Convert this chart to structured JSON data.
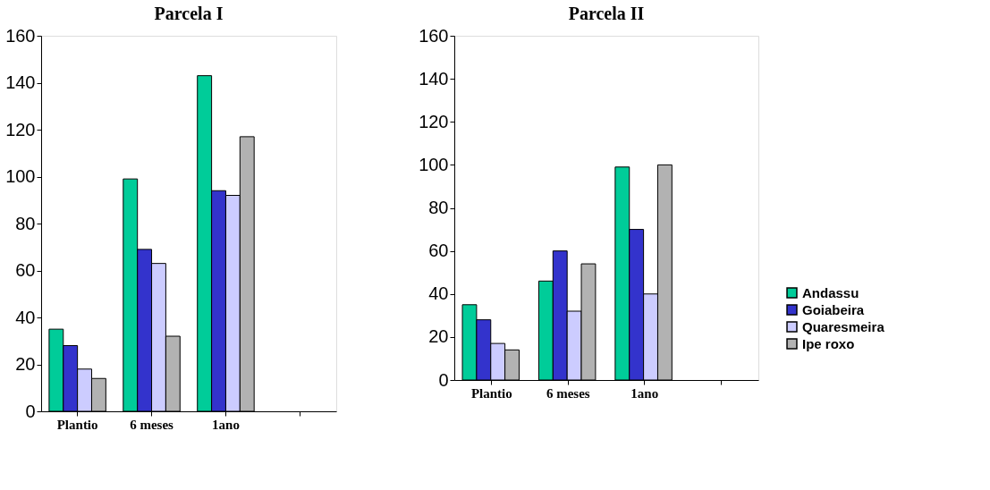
{
  "chart_data": [
    {
      "type": "bar",
      "title": "Parcela I",
      "categories": [
        "Plantio",
        "6 meses",
        "1ano",
        null
      ],
      "ylim": [
        0,
        160
      ],
      "yticks": [
        0,
        20,
        40,
        60,
        80,
        100,
        120,
        140,
        160
      ],
      "grid": false,
      "legend": false,
      "series": [
        {
          "color": "#00cc99",
          "values": [
            35,
            99,
            143,
            null
          ]
        },
        {
          "color": "#3333cc",
          "values": [
            28,
            69,
            94,
            null
          ]
        },
        {
          "color": "#ccccff",
          "values": [
            18,
            63,
            92,
            null
          ]
        },
        {
          "color": "#b2b2b2",
          "values": [
            14,
            32,
            117,
            null
          ]
        }
      ]
    },
    {
      "type": "bar",
      "title": "Parcela II",
      "categories": [
        "Plantio",
        "6 meses",
        "1ano",
        null
      ],
      "ylim": [
        0,
        160
      ],
      "yticks": [
        0,
        20,
        40,
        60,
        80,
        100,
        120,
        140,
        160
      ],
      "grid": false,
      "legend": "bottom right",
      "series": [
        {
          "name": "Andassu",
          "color": "#00cc99",
          "values": [
            35,
            46,
            99,
            null
          ]
        },
        {
          "name": "Goiabeira",
          "color": "#3333cc",
          "values": [
            28,
            60,
            70,
            null
          ]
        },
        {
          "name": "Quaresmeira",
          "color": "#ccccff",
          "values": [
            17,
            32,
            40,
            null
          ]
        },
        {
          "name": "Ipe roxo",
          "color": "#b2b2b2",
          "values": [
            14,
            54,
            100,
            null
          ]
        }
      ]
    }
  ]
}
